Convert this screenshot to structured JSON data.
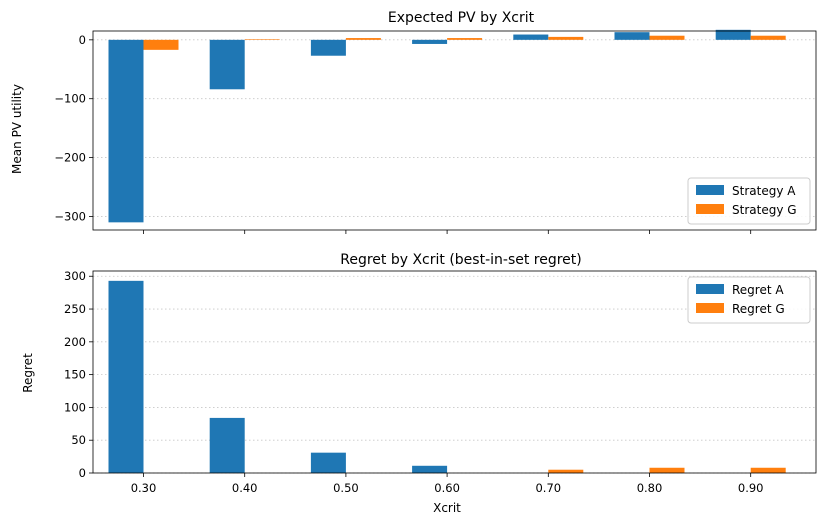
{
  "chart_data": [
    {
      "type": "bar",
      "title": "Expected PV by Xcrit",
      "xlabel": "",
      "ylabel": "Mean PV utility",
      "categories": [
        "0.30",
        "0.40",
        "0.50",
        "0.60",
        "0.70",
        "0.80",
        "0.90"
      ],
      "series": [
        {
          "name": "Strategy A",
          "color": "#1f77b4",
          "values": [
            -310,
            -84,
            -27,
            -7,
            9,
            13,
            17
          ]
        },
        {
          "name": "Strategy G",
          "color": "#ff7f0e",
          "values": [
            -17,
            1,
            3,
            3,
            5,
            7,
            7
          ]
        }
      ],
      "ylim": [
        -323,
        15
      ],
      "yticks": [
        0,
        -100,
        -200,
        -300
      ],
      "ytick_labels": [
        "0",
        "−100",
        "−200",
        "−300"
      ],
      "grid": "y-dotted",
      "legend": "lower-right",
      "show_xticklabels": false
    },
    {
      "type": "bar",
      "title": "Regret by Xcrit (best-in-set regret)",
      "xlabel": "Xcrit",
      "ylabel": "Regret",
      "categories": [
        "0.30",
        "0.40",
        "0.50",
        "0.60",
        "0.70",
        "0.80",
        "0.90"
      ],
      "series": [
        {
          "name": "Regret A",
          "color": "#1f77b4",
          "values": [
            293,
            84,
            31,
            11,
            0,
            0,
            0
          ]
        },
        {
          "name": "Regret G",
          "color": "#ff7f0e",
          "values": [
            0,
            0,
            0,
            0,
            5,
            8,
            8
          ]
        }
      ],
      "ylim": [
        0,
        308
      ],
      "yticks": [
        0,
        50,
        100,
        150,
        200,
        250,
        300
      ],
      "ytick_labels": [
        "0",
        "50",
        "100",
        "150",
        "200",
        "250",
        "300"
      ],
      "grid": "y-dotted",
      "legend": "upper-right",
      "show_xticklabels": true
    }
  ]
}
